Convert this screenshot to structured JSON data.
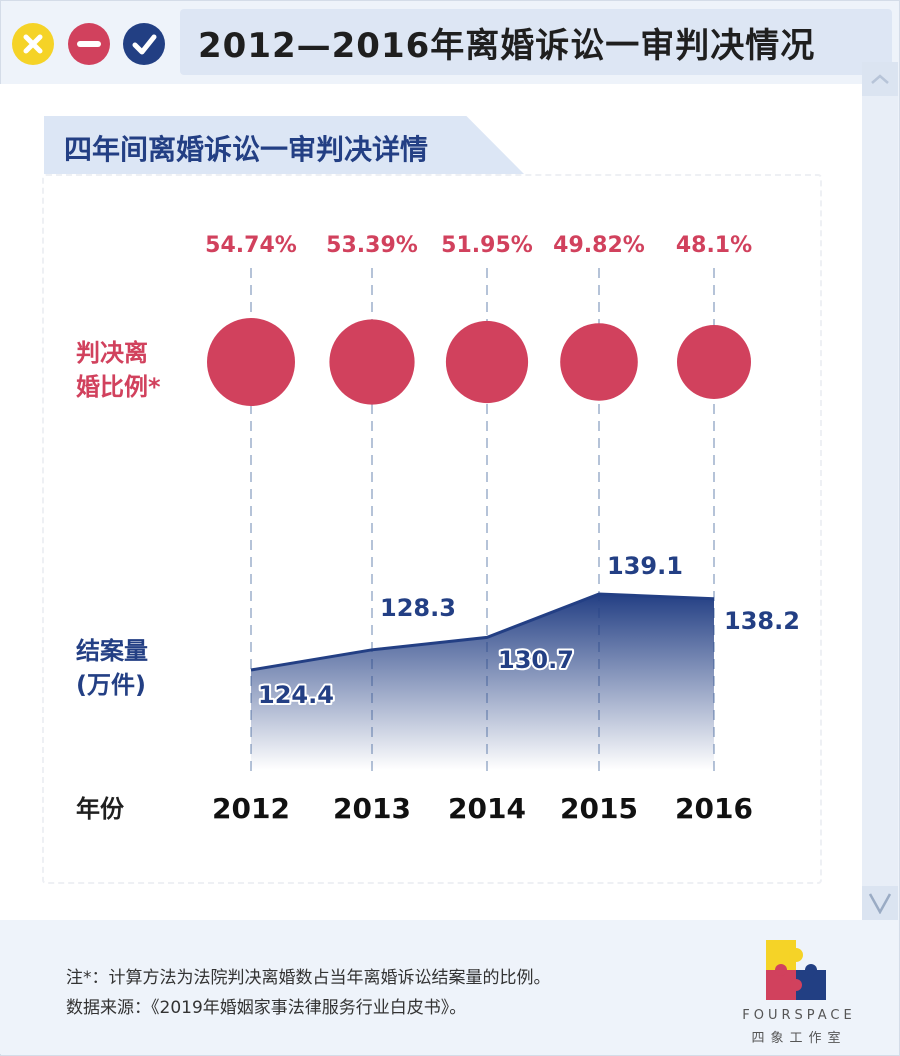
{
  "window": {
    "title": "2012—2016年离婚诉讼一审判决情况",
    "controls": [
      "close-icon",
      "minimize-icon",
      "check-icon"
    ],
    "colors": {
      "yellow": "#f5d327",
      "red": "#d1415d",
      "navy": "#223f83"
    }
  },
  "section": {
    "title": "四年间离婚诉讼一审判决详情"
  },
  "labels": {
    "ratio_line1": "判决离",
    "ratio_line2": "婚比例*",
    "cases_line1": "结案量",
    "cases_line2": "(万件)",
    "year": "年份"
  },
  "chart_data": {
    "type": "area",
    "categories": [
      "2012",
      "2013",
      "2014",
      "2015",
      "2016"
    ],
    "ratio_labels": [
      "54.74%",
      "53.39%",
      "51.95%",
      "49.82%",
      "48.1%"
    ],
    "ratio_values": [
      54.74,
      53.39,
      51.95,
      49.82,
      48.1
    ],
    "series": [
      {
        "name": "结案量(万件)",
        "values": [
          124.4,
          128.3,
          130.7,
          139.1,
          138.2
        ]
      }
    ],
    "value_labels": [
      "124.4",
      "128.3",
      "130.7",
      "139.1",
      "138.2"
    ],
    "colors": {
      "ratio": "#d1415d",
      "cases": "#233f84"
    }
  },
  "footer": {
    "note": "注*：计算方法为法院判决离婚数占当年离婚诉讼结案量的比例。",
    "source": "数据来源：《2019年婚姻家事法律服务行业白皮书》。",
    "logo_en": "FOURSPACE",
    "logo_cn": "四象工作室"
  }
}
